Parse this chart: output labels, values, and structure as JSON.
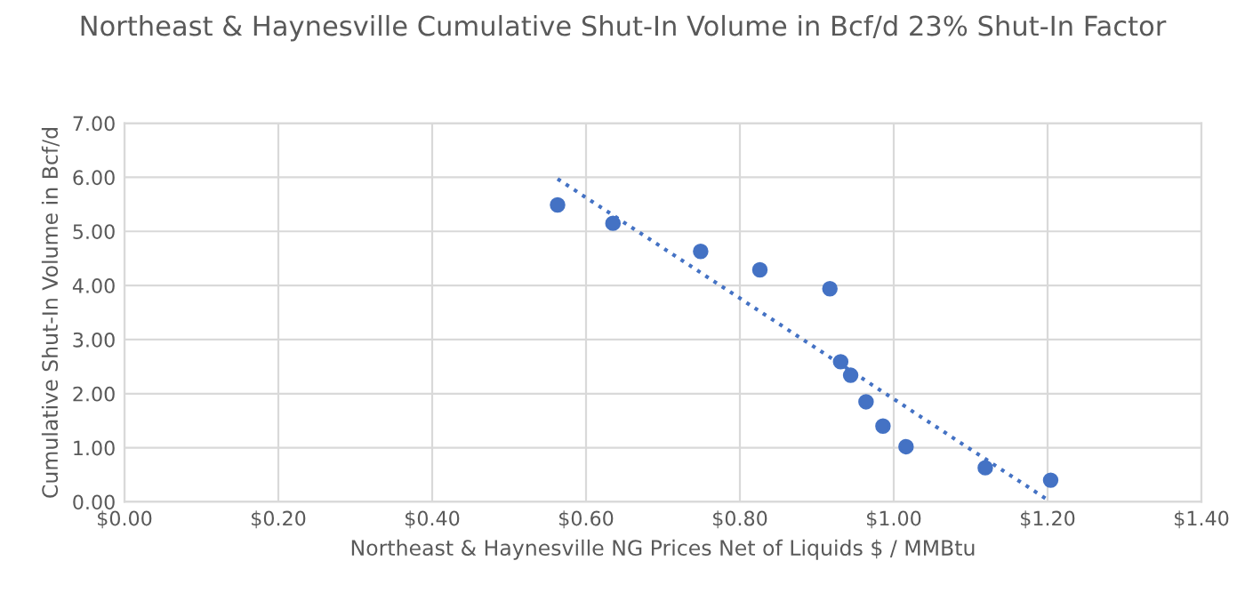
{
  "chart_data": {
    "type": "scatter",
    "title": "Northeast & Haynesville Cumulative Shut-In Volume in Bcf/d 23% Shut-In Factor",
    "xlabel": "Northeast & Haynesville NG Prices Net of Liquids $ / MMBtu",
    "ylabel": "Cumulative Shut-In Volume in Bcf/d",
    "series": [
      {
        "color": "#4472c4",
        "marker": "circle",
        "x": [
          0.563,
          0.635,
          0.749,
          0.826,
          0.917,
          0.931,
          0.944,
          0.964,
          0.986,
          1.016,
          1.119,
          1.204
        ],
        "values": [
          5.49,
          5.15,
          4.63,
          4.29,
          3.94,
          2.59,
          2.34,
          1.85,
          1.4,
          1.02,
          0.63,
          0.4
        ]
      },
      {
        "type": "line",
        "color": "#4472c4",
        "line_style": "dotted",
        "x": [
          0.563,
          1.202
        ],
        "values": [
          5.97,
          0.02
        ]
      }
    ],
    "xlim": [
      0,
      1.4
    ],
    "xticks": [
      {
        "value": 0,
        "label": "$0.00"
      },
      {
        "value": 0.2,
        "label": "$0.20"
      },
      {
        "value": 0.4,
        "label": "$0.40"
      },
      {
        "value": 0.6,
        "label": "$0.60"
      },
      {
        "value": 0.8,
        "label": "$0.80"
      },
      {
        "value": 1.0,
        "label": "$1.00"
      },
      {
        "value": 1.2,
        "label": "$1.20"
      },
      {
        "value": 1.4,
        "label": "$1.40"
      }
    ],
    "ylim": [
      0,
      7
    ],
    "yticks": [
      {
        "value": 0,
        "label": "0.00"
      },
      {
        "value": 1,
        "label": "1.00"
      },
      {
        "value": 2,
        "label": "2.00"
      },
      {
        "value": 3,
        "label": "3.00"
      },
      {
        "value": 4,
        "label": "4.00"
      },
      {
        "value": 5,
        "label": "5.00"
      },
      {
        "value": 6,
        "label": "6.00"
      },
      {
        "value": 7,
        "label": "7.00"
      }
    ],
    "grid": true
  }
}
